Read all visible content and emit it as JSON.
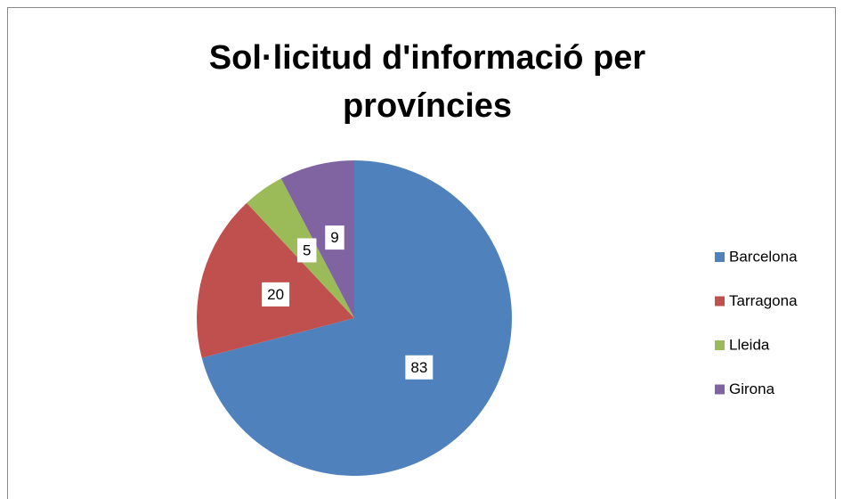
{
  "chart_data": {
    "type": "pie",
    "title": "Sol·licitud d'informació per províncies",
    "categories": [
      "Barcelona",
      "Tarragona",
      "Lleida",
      "Girona"
    ],
    "values": [
      83,
      20,
      5,
      9
    ],
    "colors": [
      "#4f81bd",
      "#c0504d",
      "#9bbb59",
      "#8064a2"
    ],
    "legend": "right"
  }
}
